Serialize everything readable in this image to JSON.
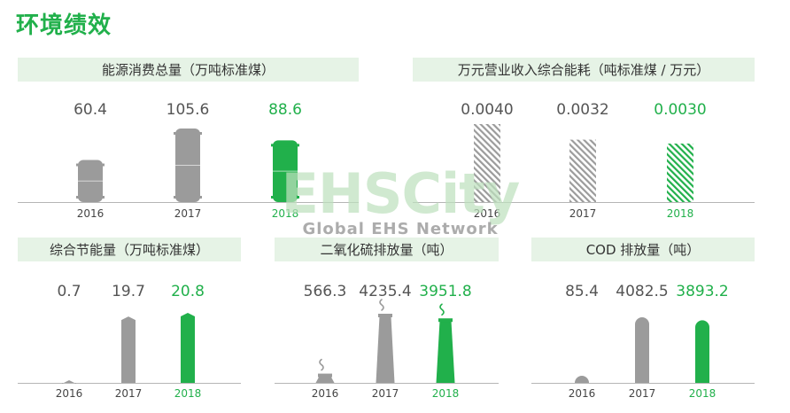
{
  "page": {
    "title": "环境绩效"
  },
  "watermark": {
    "logo": "EHSCity",
    "sub": "Global EHS Network"
  },
  "colors": {
    "accent": "#21b04b",
    "gray": "#9b9b9b",
    "header_bg": "#e6f3e6"
  },
  "chart_data": [
    {
      "id": "energy",
      "type": "bar",
      "mark": "tank",
      "title": "能源消费总量（万吨标准煤）",
      "categories": [
        "2016",
        "2017",
        "2018"
      ],
      "values": [
        60.4,
        105.6,
        88.6
      ],
      "labels": [
        "60.4",
        "105.6",
        "88.6"
      ],
      "highlight": "2018"
    },
    {
      "id": "intensity",
      "type": "bar",
      "mark": "hatched",
      "title": "万元营业收入综合能耗（吨标准煤 / 万元）",
      "categories": [
        "2016",
        "2017",
        "2018"
      ],
      "values": [
        0.004,
        0.0032,
        0.003
      ],
      "labels": [
        "0.0040",
        "0.0032",
        "0.0030"
      ],
      "highlight": "2018"
    },
    {
      "id": "saving",
      "type": "bar",
      "mark": "cutbar",
      "title": "综合节能量（万吨标准煤）",
      "categories": [
        "2016",
        "2017",
        "2018"
      ],
      "values": [
        0.7,
        19.7,
        20.8
      ],
      "labels": [
        "0.7",
        "19.7",
        "20.8"
      ],
      "highlight": "2018"
    },
    {
      "id": "so2",
      "type": "bar",
      "mark": "chimney",
      "title": "二氧化硫排放量（吨）",
      "categories": [
        "2016",
        "2017",
        "2018"
      ],
      "values": [
        566.3,
        4235.4,
        3951.8
      ],
      "labels": [
        "566.3",
        "4235.4",
        "3951.8"
      ],
      "highlight": "2018"
    },
    {
      "id": "cod",
      "type": "bar",
      "mark": "rounded",
      "title": "COD 排放量（吨）",
      "categories": [
        "2016",
        "2017",
        "2018"
      ],
      "values": [
        85.4,
        4082.5,
        3893.2
      ],
      "labels": [
        "85.4",
        "4082.5",
        "3893.2"
      ],
      "highlight": "2018"
    }
  ]
}
